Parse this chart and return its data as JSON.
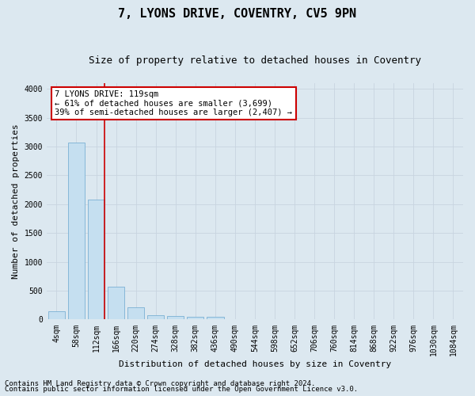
{
  "title1": "7, LYONS DRIVE, COVENTRY, CV5 9PN",
  "title2": "Size of property relative to detached houses in Coventry",
  "xlabel": "Distribution of detached houses by size in Coventry",
  "ylabel": "Number of detached properties",
  "bar_labels": [
    "4sqm",
    "58sqm",
    "112sqm",
    "166sqm",
    "220sqm",
    "274sqm",
    "328sqm",
    "382sqm",
    "436sqm",
    "490sqm",
    "544sqm",
    "598sqm",
    "652sqm",
    "706sqm",
    "760sqm",
    "814sqm",
    "868sqm",
    "922sqm",
    "976sqm",
    "1030sqm",
    "1084sqm"
  ],
  "bar_values": [
    150,
    3070,
    2080,
    570,
    215,
    80,
    55,
    50,
    50,
    0,
    0,
    0,
    0,
    0,
    0,
    0,
    0,
    0,
    0,
    0,
    0
  ],
  "bar_color": "#c5dff0",
  "bar_edge_color": "#7ab0d4",
  "vline_color": "#cc0000",
  "annotation_text": "7 LYONS DRIVE: 119sqm\n← 61% of detached houses are smaller (3,699)\n39% of semi-detached houses are larger (2,407) →",
  "annotation_box_color": "#ffffff",
  "annotation_box_edge": "#cc0000",
  "ylim": [
    0,
    4100
  ],
  "yticks": [
    0,
    500,
    1000,
    1500,
    2000,
    2500,
    3000,
    3500,
    4000
  ],
  "grid_color": "#c8d4e0",
  "bg_color": "#dce8f0",
  "footer1": "Contains HM Land Registry data © Crown copyright and database right 2024.",
  "footer2": "Contains public sector information licensed under the Open Government Licence v3.0.",
  "title1_fontsize": 11,
  "title2_fontsize": 9,
  "tick_fontsize": 7,
  "axis_label_fontsize": 8,
  "footer_fontsize": 6.5,
  "annot_fontsize": 7.5
}
